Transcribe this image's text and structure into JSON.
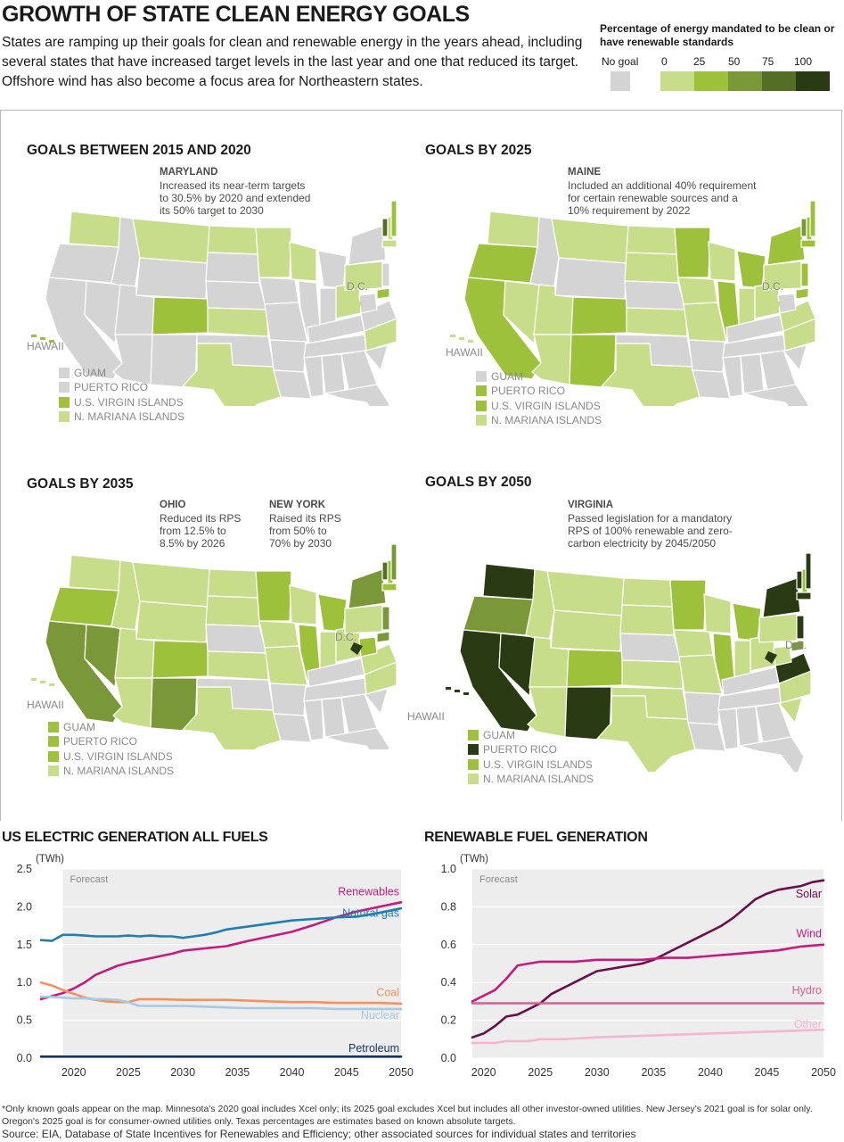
{
  "header": {
    "title": "GROWTH OF STATE CLEAN ENERGY GOALS",
    "subtitle": "States are ramping up their goals for clean and renewable energy in the years ahead, including several states that have increased target levels in the last year and one that reduced its target. Offshore wind has also become a focus area for Northeastern states."
  },
  "legend": {
    "title": "Percentage of energy mandated to be clean or have renewable standards",
    "no_goal": "No goal",
    "ticks": [
      "0",
      "25",
      "50",
      "75",
      "100"
    ],
    "colors": {
      "no_goal": "#d4d4d4",
      "pct_0": "#c7dd8a",
      "pct_25": "#9dc13b",
      "pct_50": "#7b9838",
      "pct_75": "#556e26",
      "pct_100": "#2a3a12"
    }
  },
  "maps": [
    {
      "title": "GOALS BETWEEN 2015 AND 2020",
      "annotations": [
        {
          "title": "MARYLAND",
          "body": [
            "Increased its near-term targets",
            "to 30.5% by 2020 and extended",
            "its 50% target to 2030"
          ]
        }
      ],
      "labels": {
        "hawaii": "HAWAII",
        "dc": "D.C."
      },
      "territories": [
        {
          "name": "GUAM",
          "color": "#d4d4d4"
        },
        {
          "name": "PUERTO RICO",
          "color": "#d4d4d4"
        },
        {
          "name": "U.S. VIRGIN ISLANDS",
          "color": "#9dc13b"
        },
        {
          "name": "N. MARIANA ISLANDS",
          "color": "#c7dd8a"
        }
      ]
    },
    {
      "title": "GOALS BY 2025",
      "annotations": [
        {
          "title": "MAINE",
          "body": [
            "Included an additional 40% requirement",
            "for certain renewable sources and a",
            "10% requirement by 2022"
          ]
        }
      ],
      "labels": {
        "hawaii": "HAWAII",
        "dc": "D.C."
      },
      "territories": [
        {
          "name": "GUAM",
          "color": "#d4d4d4"
        },
        {
          "name": "PUERTO RICO",
          "color": "#9dc13b"
        },
        {
          "name": "U.S. VIRGIN ISLANDS",
          "color": "#9dc13b"
        },
        {
          "name": "N. MARIANA ISLANDS",
          "color": "#c7dd8a"
        }
      ]
    },
    {
      "title": "GOALS BY 2035",
      "annotations": [
        {
          "title": "OHIO",
          "body": [
            "Reduced its RPS",
            "from 12.5% to",
            "8.5% by 2026"
          ]
        },
        {
          "title": "NEW YORK",
          "body": [
            "Raised its RPS",
            "from 50% to",
            "70% by 2030"
          ]
        }
      ],
      "labels": {
        "hawaii": "HAWAII",
        "dc": "D.C."
      },
      "territories": [
        {
          "name": "GUAM",
          "color": "#9dc13b"
        },
        {
          "name": "PUERTO RICO",
          "color": "#9dc13b"
        },
        {
          "name": "U.S. VIRGIN ISLANDS",
          "color": "#9dc13b"
        },
        {
          "name": "N. MARIANA ISLANDS",
          "color": "#c7dd8a"
        }
      ]
    },
    {
      "title": "GOALS BY 2050",
      "annotations": [
        {
          "title": "VIRGINIA",
          "body": [
            "Passed legislation for a mandatory",
            "RPS of 100% renewable and zero-",
            "carbon electricity by 2045/2050"
          ]
        }
      ],
      "labels": {
        "hawaii": "HAWAII",
        "dc": "D.C."
      },
      "territories": [
        {
          "name": "GUAM",
          "color": "#9dc13b"
        },
        {
          "name": "PUERTO RICO",
          "color": "#2a3a12"
        },
        {
          "name": "U.S. VIRGIN ISLANDS",
          "color": "#9dc13b"
        },
        {
          "name": "N. MARIANA ISLANDS",
          "color": "#c7dd8a"
        }
      ]
    }
  ],
  "chart_data": [
    {
      "type": "line",
      "title": "US ELECTRIC GENERATION ALL FUELS",
      "ylabel": "(TWh)",
      "forecast_label": "Forecast",
      "forecast_start": 2019,
      "xlim": [
        2017,
        2050
      ],
      "ylim": [
        0,
        2.5
      ],
      "xticks": [
        "2020",
        "2025",
        "2030",
        "2035",
        "2040",
        "2045",
        "2050"
      ],
      "yticks": [
        "0.0",
        "0.5",
        "1.0",
        "1.5",
        "2.0",
        "2.5"
      ],
      "grid": true,
      "series": [
        {
          "name": "Renewables",
          "color": "#c51b7d",
          "x": [
            2017,
            2018,
            2019,
            2020,
            2021,
            2022,
            2023,
            2024,
            2025,
            2026,
            2027,
            2028,
            2029,
            2030,
            2032,
            2034,
            2036,
            2038,
            2040,
            2042,
            2044,
            2046,
            2048,
            2050
          ],
          "y": [
            0.78,
            0.82,
            0.86,
            0.92,
            1.0,
            1.1,
            1.16,
            1.22,
            1.26,
            1.29,
            1.32,
            1.35,
            1.38,
            1.42,
            1.45,
            1.48,
            1.55,
            1.61,
            1.67,
            1.76,
            1.86,
            1.94,
            2.0,
            2.06
          ]
        },
        {
          "name": "Natural gas",
          "color": "#1f7fae",
          "x": [
            2017,
            2018,
            2019,
            2020,
            2021,
            2022,
            2023,
            2024,
            2025,
            2026,
            2027,
            2028,
            2029,
            2030,
            2031,
            2032,
            2033,
            2034,
            2035,
            2036,
            2038,
            2040,
            2042,
            2044,
            2046,
            2048,
            2050
          ],
          "y": [
            1.56,
            1.55,
            1.63,
            1.63,
            1.62,
            1.61,
            1.61,
            1.61,
            1.62,
            1.61,
            1.62,
            1.61,
            1.61,
            1.59,
            1.61,
            1.63,
            1.66,
            1.7,
            1.72,
            1.74,
            1.78,
            1.82,
            1.84,
            1.86,
            1.87,
            1.92,
            1.98
          ]
        },
        {
          "name": "Coal",
          "color": "#f5915a",
          "x": [
            2017,
            2018,
            2019,
            2020,
            2021,
            2022,
            2023,
            2024,
            2025,
            2026,
            2028,
            2030,
            2032,
            2034,
            2036,
            2038,
            2040,
            2042,
            2044,
            2046,
            2048,
            2050
          ],
          "y": [
            1.0,
            0.96,
            0.9,
            0.85,
            0.8,
            0.77,
            0.75,
            0.74,
            0.74,
            0.78,
            0.78,
            0.77,
            0.77,
            0.77,
            0.76,
            0.75,
            0.74,
            0.74,
            0.73,
            0.73,
            0.73,
            0.72
          ]
        },
        {
          "name": "Nuclear",
          "color": "#a8c8e4",
          "x": [
            2017,
            2018,
            2019,
            2020,
            2021,
            2022,
            2023,
            2024,
            2025,
            2026,
            2028,
            2030,
            2032,
            2034,
            2036,
            2038,
            2040,
            2042,
            2044,
            2046,
            2048,
            2050
          ],
          "y": [
            0.81,
            0.81,
            0.8,
            0.79,
            0.79,
            0.78,
            0.78,
            0.77,
            0.74,
            0.69,
            0.69,
            0.69,
            0.68,
            0.67,
            0.66,
            0.66,
            0.66,
            0.66,
            0.65,
            0.65,
            0.65,
            0.65
          ]
        },
        {
          "name": "Petroleum",
          "color": "#14345a",
          "x": [
            2017,
            2020,
            2025,
            2030,
            2035,
            2040,
            2045,
            2050
          ],
          "y": [
            0.02,
            0.02,
            0.02,
            0.02,
            0.02,
            0.02,
            0.02,
            0.02
          ]
        }
      ]
    },
    {
      "type": "line",
      "title": "RENEWABLE FUEL GENERATION",
      "ylabel": "(TWh)",
      "forecast_label": "Forecast",
      "forecast_start": 2019,
      "xlim": [
        2019,
        2050
      ],
      "ylim": [
        0,
        1.0
      ],
      "xticks": [
        "2020",
        "2025",
        "2030",
        "2035",
        "2040",
        "2045",
        "2050"
      ],
      "yticks": [
        "0.0",
        "0.2",
        "0.4",
        "0.6",
        "0.8",
        "1.0"
      ],
      "grid": true,
      "series": [
        {
          "name": "Solar",
          "color": "#6a0f4a",
          "x": [
            2019,
            2020,
            2021,
            2022,
            2023,
            2024,
            2025,
            2026,
            2027,
            2028,
            2029,
            2030,
            2031,
            2032,
            2033,
            2034,
            2035,
            2036,
            2037,
            2038,
            2039,
            2040,
            2041,
            2042,
            2043,
            2044,
            2045,
            2046,
            2047,
            2048,
            2049,
            2050
          ],
          "y": [
            0.11,
            0.13,
            0.17,
            0.22,
            0.23,
            0.26,
            0.29,
            0.34,
            0.37,
            0.4,
            0.43,
            0.46,
            0.47,
            0.48,
            0.49,
            0.5,
            0.52,
            0.55,
            0.58,
            0.61,
            0.64,
            0.67,
            0.7,
            0.74,
            0.79,
            0.84,
            0.87,
            0.89,
            0.9,
            0.91,
            0.93,
            0.94
          ]
        },
        {
          "name": "Wind",
          "color": "#c51b7d",
          "x": [
            2019,
            2020,
            2021,
            2022,
            2023,
            2024,
            2025,
            2026,
            2028,
            2030,
            2032,
            2034,
            2036,
            2038,
            2040,
            2042,
            2044,
            2046,
            2048,
            2050
          ],
          "y": [
            0.3,
            0.33,
            0.36,
            0.42,
            0.49,
            0.5,
            0.51,
            0.51,
            0.51,
            0.52,
            0.52,
            0.52,
            0.53,
            0.53,
            0.54,
            0.55,
            0.56,
            0.57,
            0.59,
            0.6
          ]
        },
        {
          "name": "Hydro",
          "color": "#d65f92",
          "x": [
            2019,
            2025,
            2030,
            2035,
            2040,
            2045,
            2050
          ],
          "y": [
            0.29,
            0.29,
            0.29,
            0.29,
            0.29,
            0.29,
            0.29
          ]
        },
        {
          "name": "Other",
          "color": "#f4b6d0",
          "x": [
            2019,
            2021,
            2022,
            2023,
            2024,
            2025,
            2027,
            2030,
            2035,
            2040,
            2045,
            2050
          ],
          "y": [
            0.08,
            0.08,
            0.09,
            0.09,
            0.09,
            0.1,
            0.1,
            0.11,
            0.12,
            0.13,
            0.14,
            0.15
          ]
        }
      ]
    }
  ],
  "footnote": "*Only known goals appear on the map. Minnesota's 2020 goal includes Xcel only; its 2025 goal excludes Xcel but includes all other investor-owned utilities. New Jersey's 2021 goal is for solar only. Oregon's 2025 goal is for consumer-owned utilities only. Texas percentages are estimates based on known absolute targets.",
  "source": "Source: EIA, Database of State Incentives for Renewables and Efficiency; other associated sources for individual states and territories"
}
